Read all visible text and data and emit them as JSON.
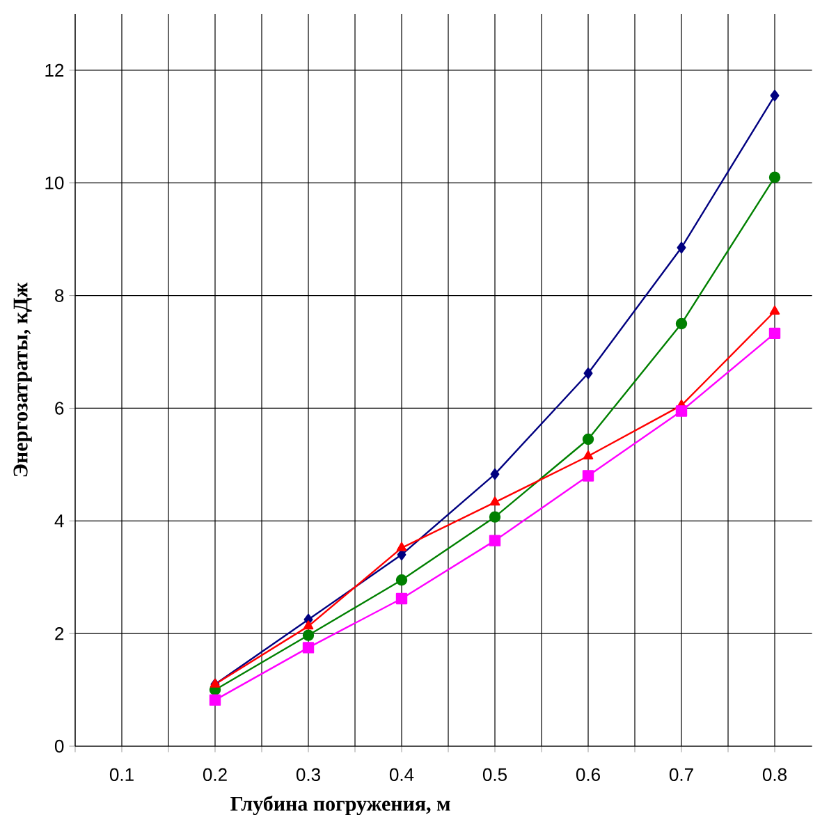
{
  "chart_data": {
    "type": "line",
    "xlabel": "Глубина погружения, м",
    "ylabel": "Энергозатраты, кДж",
    "x": [
      0.2,
      0.3,
      0.4,
      0.5,
      0.6,
      0.7,
      0.8
    ],
    "series": [
      {
        "color": "#000080",
        "marker": "diamond",
        "values": [
          1.1,
          2.25,
          3.4,
          4.83,
          6.62,
          8.85,
          11.55
        ]
      },
      {
        "color": "#008000",
        "marker": "circle",
        "values": [
          1.0,
          1.97,
          2.95,
          4.07,
          5.45,
          7.5,
          10.1
        ]
      },
      {
        "color": "#ff0000",
        "marker": "triangle",
        "values": [
          1.1,
          2.13,
          3.52,
          4.33,
          5.15,
          6.05,
          7.72
        ]
      },
      {
        "color": "#ff00ff",
        "marker": "square",
        "values": [
          0.82,
          1.75,
          2.62,
          3.65,
          4.8,
          5.95,
          7.33
        ]
      }
    ],
    "xlim": [
      0.05,
      0.84
    ],
    "ylim": [
      0,
      13
    ],
    "xticks": [
      {
        "value": 0.05,
        "label": null
      },
      0.1,
      {
        "value": 0.15,
        "label": null
      },
      0.2,
      {
        "value": 0.25,
        "label": null
      },
      0.3,
      {
        "value": 0.35,
        "label": null
      },
      0.4,
      {
        "value": 0.45,
        "label": null
      },
      0.5,
      {
        "value": 0.55,
        "label": null
      },
      0.6,
      {
        "value": 0.65,
        "label": null
      },
      0.7,
      {
        "value": 0.75,
        "label": null
      },
      0.8
    ],
    "yticks": [
      0,
      2,
      4,
      6,
      8,
      10,
      12
    ],
    "grid": true,
    "line_style": "solid"
  }
}
